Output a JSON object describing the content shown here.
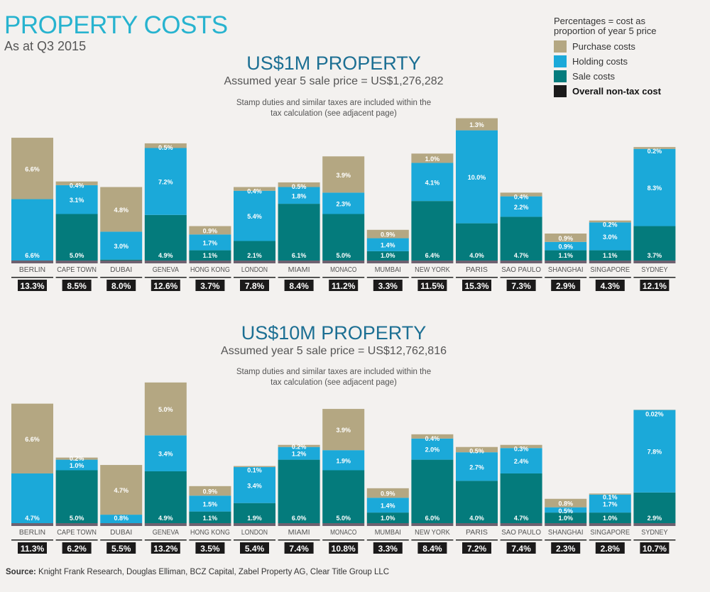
{
  "title": "PROPERTY COSTS",
  "subtitle": "As at Q3 2015",
  "legend": {
    "heading_line1": "Percentages = cost as",
    "heading_line2": "proportion of year 5 price",
    "items": [
      "Purchase costs",
      "Holding costs",
      "Sale costs",
      "Overall non-tax cost"
    ]
  },
  "colors": {
    "purchase": "#b4a782",
    "holding": "#1ba9d9",
    "sale": "#047b7c",
    "overall": "#1b1a1a",
    "title": "#27b3cf",
    "chart_title": "#1c6f93"
  },
  "source": {
    "label": "Source:",
    "text": "Knight Frank Research, Douglas Elliman, BCZ Capital, Zabel Property AG, Clear Title Group LLC"
  },
  "chart_data": [
    {
      "type": "bar",
      "stacked": true,
      "title": "US$1M PROPERTY",
      "subtitle": "Assumed year 5 sale price = US$1,276,282",
      "note_line1": "Stamp duties and similar taxes are included within the",
      "note_line2": "tax calculation (see adjacent page)",
      "categories": [
        "BERLIN",
        "CAPE TOWN",
        "DUBAI",
        "GENEVA",
        "HONG KONG",
        "LONDON",
        "MIAMI",
        "MONACO",
        "MUMBAI",
        "NEW YORK",
        "PARIS",
        "SAO PAULO",
        "SHANGHAI",
        "SINGAPORE",
        "SYDNEY"
      ],
      "series": [
        {
          "name": "Sale costs",
          "values": [
            0,
            5.0,
            0.1,
            4.9,
            1.1,
            2.1,
            6.1,
            5.0,
            1.0,
            6.4,
            4.0,
            4.7,
            1.1,
            1.1,
            3.7
          ]
        },
        {
          "name": "Holding costs",
          "values": [
            6.6,
            3.1,
            3.0,
            7.2,
            1.7,
            5.4,
            1.8,
            2.3,
            1.4,
            4.1,
            10.0,
            2.2,
            0.9,
            3.0,
            8.3
          ]
        },
        {
          "name": "Purchase costs",
          "values": [
            6.6,
            0.4,
            4.8,
            0.5,
            0.9,
            0.4,
            0.5,
            3.9,
            0.9,
            1.0,
            1.3,
            0.4,
            0.9,
            0.2,
            0.2
          ]
        }
      ],
      "totals": [
        "13.3%",
        "8.5%",
        "8.0%",
        "12.6%",
        "3.7%",
        "7.8%",
        "8.4%",
        "11.2%",
        "3.3%",
        "11.5%",
        "15.3%",
        "7.3%",
        "2.9%",
        "4.3%",
        "12.1%"
      ]
    },
    {
      "type": "bar",
      "stacked": true,
      "title": "US$10M PROPERTY",
      "subtitle": "Assumed year 5 sale price = US$12,762,816",
      "note_line1": "Stamp duties and similar taxes are included within the",
      "note_line2": "tax calculation (see adjacent page)",
      "categories": [
        "BERLIN",
        "CAPE TOWN",
        "DUBAI",
        "GENEVA",
        "HONG KONG",
        "LONDON",
        "MIAMI",
        "MONACO",
        "MUMBAI",
        "NEW YORK",
        "PARIS",
        "SAO PAULO",
        "SHANGHAI",
        "SINGAPORE",
        "SYDNEY"
      ],
      "series": [
        {
          "name": "Sale costs",
          "values": [
            0,
            5.0,
            0,
            4.9,
            1.1,
            1.9,
            6.0,
            5.0,
            1.0,
            6.0,
            4.0,
            4.7,
            1.0,
            1.0,
            2.9
          ]
        },
        {
          "name": "Holding costs",
          "values": [
            4.7,
            1.0,
            0.8,
            3.4,
            1.5,
            3.4,
            1.2,
            1.9,
            1.4,
            2.0,
            2.7,
            2.4,
            0.5,
            1.7,
            7.8
          ]
        },
        {
          "name": "Purchase costs",
          "values": [
            6.6,
            0.2,
            4.7,
            5.0,
            0.9,
            0.1,
            0.2,
            3.9,
            0.9,
            0.4,
            0.5,
            0.3,
            0.8,
            0.1,
            0.02
          ]
        }
      ],
      "totals": [
        "11.3%",
        "6.2%",
        "5.5%",
        "13.2%",
        "3.5%",
        "5.4%",
        "7.4%",
        "10.8%",
        "3.3%",
        "8.4%",
        "7.2%",
        "7.4%",
        "2.3%",
        "2.8%",
        "10.7%"
      ]
    }
  ]
}
